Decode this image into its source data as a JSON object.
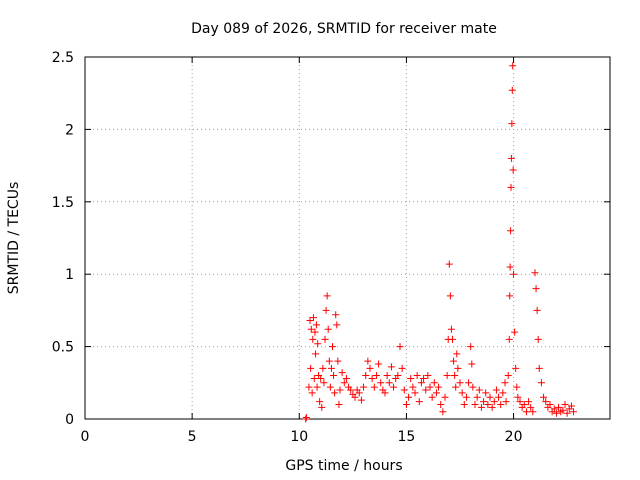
{
  "chart_data": {
    "type": "scatter",
    "title": "Day 089 of 2026, SRMTID for receiver mate",
    "xlabel": "GPS time / hours",
    "ylabel": "SRMTID / TECUs",
    "xlim": [
      0,
      24.5
    ],
    "ylim": [
      0,
      2.5
    ],
    "grid": true,
    "marker": "plus",
    "color": "#ff0000",
    "x_ticks": [
      "0",
      "5",
      "10",
      "15",
      "20"
    ],
    "y_ticks": [
      "0",
      "0.5",
      "1",
      "1.5",
      "2",
      "2.5"
    ],
    "series": [
      {
        "points": [
          [
            10.3,
            0.0
          ],
          [
            10.33,
            0.01
          ],
          [
            10.45,
            0.22
          ],
          [
            10.5,
            0.68
          ],
          [
            10.53,
            0.35
          ],
          [
            10.56,
            0.62
          ],
          [
            10.6,
            0.18
          ],
          [
            10.63,
            0.55
          ],
          [
            10.66,
            0.7
          ],
          [
            10.7,
            0.28
          ],
          [
            10.73,
            0.6
          ],
          [
            10.76,
            0.45
          ],
          [
            10.8,
            0.65
          ],
          [
            10.83,
            0.22
          ],
          [
            10.86,
            0.52
          ],
          [
            10.9,
            0.3
          ],
          [
            10.95,
            0.12
          ],
          [
            11.0,
            0.28
          ],
          [
            11.05,
            0.08
          ],
          [
            11.1,
            0.35
          ],
          [
            11.15,
            0.25
          ],
          [
            11.2,
            0.55
          ],
          [
            11.25,
            0.75
          ],
          [
            11.3,
            0.85
          ],
          [
            11.35,
            0.62
          ],
          [
            11.4,
            0.4
          ],
          [
            11.45,
            0.22
          ],
          [
            11.5,
            0.35
          ],
          [
            11.55,
            0.5
          ],
          [
            11.6,
            0.3
          ],
          [
            11.65,
            0.18
          ],
          [
            11.7,
            0.72
          ],
          [
            11.75,
            0.65
          ],
          [
            11.8,
            0.4
          ],
          [
            11.85,
            0.1
          ],
          [
            11.9,
            0.2
          ],
          [
            12.0,
            0.32
          ],
          [
            12.1,
            0.25
          ],
          [
            12.2,
            0.28
          ],
          [
            12.3,
            0.22
          ],
          [
            12.4,
            0.2
          ],
          [
            12.5,
            0.17
          ],
          [
            12.6,
            0.15
          ],
          [
            12.7,
            0.2
          ],
          [
            12.8,
            0.18
          ],
          [
            12.9,
            0.13
          ],
          [
            13.0,
            0.22
          ],
          [
            13.1,
            0.3
          ],
          [
            13.2,
            0.4
          ],
          [
            13.3,
            0.35
          ],
          [
            13.4,
            0.28
          ],
          [
            13.5,
            0.22
          ],
          [
            13.6,
            0.3
          ],
          [
            13.7,
            0.38
          ],
          [
            13.8,
            0.25
          ],
          [
            13.9,
            0.2
          ],
          [
            14.0,
            0.18
          ],
          [
            14.1,
            0.3
          ],
          [
            14.2,
            0.25
          ],
          [
            14.3,
            0.36
          ],
          [
            14.4,
            0.22
          ],
          [
            14.5,
            0.28
          ],
          [
            14.6,
            0.3
          ],
          [
            14.7,
            0.5
          ],
          [
            14.8,
            0.35
          ],
          [
            14.9,
            0.2
          ],
          [
            15.0,
            0.1
          ],
          [
            15.1,
            0.15
          ],
          [
            15.2,
            0.28
          ],
          [
            15.3,
            0.22
          ],
          [
            15.4,
            0.18
          ],
          [
            15.5,
            0.3
          ],
          [
            15.6,
            0.12
          ],
          [
            15.7,
            0.25
          ],
          [
            15.8,
            0.28
          ],
          [
            15.9,
            0.2
          ],
          [
            16.0,
            0.3
          ],
          [
            16.1,
            0.22
          ],
          [
            16.2,
            0.15
          ],
          [
            16.3,
            0.25
          ],
          [
            16.4,
            0.18
          ],
          [
            16.5,
            0.22
          ],
          [
            16.6,
            0.1
          ],
          [
            16.7,
            0.05
          ],
          [
            16.8,
            0.15
          ],
          [
            16.9,
            0.3
          ],
          [
            16.95,
            0.55
          ],
          [
            17.0,
            1.07
          ],
          [
            17.05,
            0.85
          ],
          [
            17.1,
            0.62
          ],
          [
            17.15,
            0.55
          ],
          [
            17.2,
            0.4
          ],
          [
            17.25,
            0.3
          ],
          [
            17.3,
            0.22
          ],
          [
            17.35,
            0.45
          ],
          [
            17.4,
            0.35
          ],
          [
            17.5,
            0.25
          ],
          [
            17.6,
            0.18
          ],
          [
            17.7,
            0.1
          ],
          [
            17.8,
            0.15
          ],
          [
            17.9,
            0.25
          ],
          [
            18.0,
            0.5
          ],
          [
            18.05,
            0.38
          ],
          [
            18.1,
            0.22
          ],
          [
            18.2,
            0.1
          ],
          [
            18.3,
            0.15
          ],
          [
            18.4,
            0.2
          ],
          [
            18.5,
            0.08
          ],
          [
            18.6,
            0.12
          ],
          [
            18.7,
            0.18
          ],
          [
            18.8,
            0.1
          ],
          [
            18.9,
            0.15
          ],
          [
            19.0,
            0.08
          ],
          [
            19.1,
            0.12
          ],
          [
            19.2,
            0.2
          ],
          [
            19.3,
            0.15
          ],
          [
            19.4,
            0.1
          ],
          [
            19.5,
            0.18
          ],
          [
            19.6,
            0.25
          ],
          [
            19.65,
            0.12
          ],
          [
            19.75,
            0.3
          ],
          [
            19.8,
            0.55
          ],
          [
            19.82,
            0.85
          ],
          [
            19.84,
            1.05
          ],
          [
            19.86,
            1.3
          ],
          [
            19.88,
            1.6
          ],
          [
            19.9,
            1.8
          ],
          [
            19.92,
            2.04
          ],
          [
            19.94,
            2.27
          ],
          [
            19.96,
            2.44
          ],
          [
            19.98,
            1.72
          ],
          [
            20.0,
            1.0
          ],
          [
            20.05,
            0.6
          ],
          [
            20.1,
            0.35
          ],
          [
            20.15,
            0.22
          ],
          [
            20.2,
            0.15
          ],
          [
            20.3,
            0.12
          ],
          [
            20.4,
            0.08
          ],
          [
            20.5,
            0.1
          ],
          [
            20.6,
            0.05
          ],
          [
            20.7,
            0.12
          ],
          [
            20.8,
            0.08
          ],
          [
            20.9,
            0.05
          ],
          [
            21.0,
            1.01
          ],
          [
            21.05,
            0.9
          ],
          [
            21.1,
            0.75
          ],
          [
            21.15,
            0.55
          ],
          [
            21.2,
            0.35
          ],
          [
            21.3,
            0.25
          ],
          [
            21.4,
            0.15
          ],
          [
            21.5,
            0.12
          ],
          [
            21.6,
            0.08
          ],
          [
            21.7,
            0.1
          ],
          [
            21.8,
            0.05
          ],
          [
            21.9,
            0.07
          ],
          [
            22.0,
            0.04
          ],
          [
            22.1,
            0.08
          ],
          [
            22.2,
            0.05
          ],
          [
            22.3,
            0.06
          ],
          [
            22.4,
            0.1
          ],
          [
            22.5,
            0.04
          ],
          [
            22.6,
            0.07
          ],
          [
            22.7,
            0.09
          ],
          [
            22.8,
            0.05
          ]
        ]
      }
    ]
  }
}
